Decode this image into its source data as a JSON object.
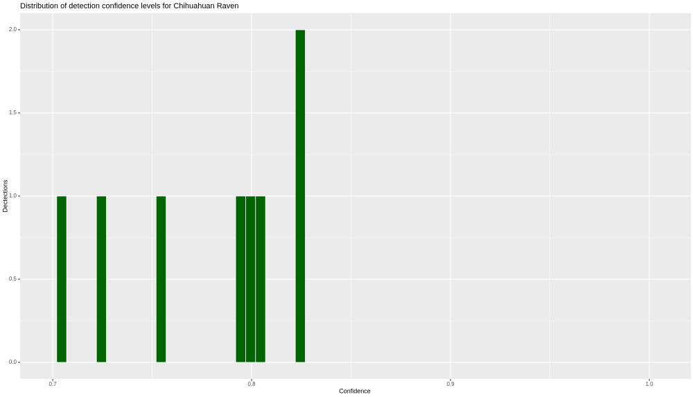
{
  "chart_data": {
    "type": "histogram",
    "title": "Distribution of detection confidence levels for Chihuahuan Raven",
    "x_label": "Confidence",
    "y_label": "Dectections",
    "bins": [
      0.702,
      0.707,
      0.712,
      0.717,
      0.722,
      0.727,
      0.732,
      0.737,
      0.742,
      0.747,
      0.752,
      0.757,
      0.762,
      0.767,
      0.772,
      0.777,
      0.782,
      0.787,
      0.792,
      0.797,
      0.802,
      0.807,
      0.812,
      0.817,
      0.822,
      0.827
    ],
    "counts": [
      1,
      0,
      0,
      0,
      1,
      0,
      0,
      0,
      0,
      0,
      1,
      0,
      0,
      0,
      0,
      0,
      0,
      0,
      1,
      1,
      1,
      0,
      0,
      0,
      2
    ],
    "color": "#006400",
    "xlim": [
      0.6836,
      1.0209
    ],
    "xticks": [
      0.7,
      0.8,
      0.9,
      {
        "value": 1,
        "label": "1.0"
      }
    ],
    "ylim": [
      -0.1,
      2.1
    ],
    "yticks": [
      {
        "value": 0,
        "label": "0.0"
      },
      0.5,
      {
        "value": 1,
        "label": "1.0"
      },
      1.5,
      {
        "value": 2,
        "label": "2.0"
      }
    ],
    "grid": true
  }
}
